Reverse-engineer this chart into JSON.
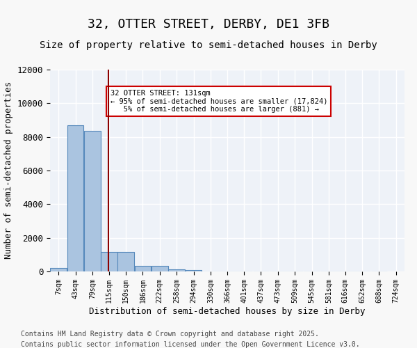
{
  "title": "32, OTTER STREET, DERBY, DE1 3FB",
  "subtitle": "Size of property relative to semi-detached houses in Derby",
  "xlabel": "Distribution of semi-detached houses by size in Derby",
  "ylabel": "Number of semi-detached properties",
  "footer_line1": "Contains HM Land Registry data © Crown copyright and database right 2025.",
  "footer_line2": "Contains public sector information licensed under the Open Government Licence v3.0.",
  "bins": [
    "7sqm",
    "43sqm",
    "79sqm",
    "115sqm",
    "150sqm",
    "186sqm",
    "222sqm",
    "258sqm",
    "294sqm",
    "330sqm",
    "366sqm",
    "401sqm",
    "437sqm",
    "473sqm",
    "509sqm",
    "545sqm",
    "581sqm",
    "616sqm",
    "652sqm",
    "688sqm",
    "724sqm"
  ],
  "bin_edges": [
    7,
    43,
    79,
    115,
    150,
    186,
    222,
    258,
    294,
    330,
    366,
    401,
    437,
    473,
    509,
    545,
    581,
    616,
    652,
    688,
    724
  ],
  "values": [
    200,
    8700,
    8350,
    1150,
    1150,
    320,
    320,
    120,
    100,
    0,
    0,
    0,
    0,
    0,
    0,
    0,
    0,
    0,
    0,
    0
  ],
  "bar_color": "#aac4e0",
  "bar_edge_color": "#5588bb",
  "vline_x": 131,
  "vline_color": "#8b0000",
  "annotation_text": "32 OTTER STREET: 131sqm\n← 95% of semi-detached houses are smaller (17,824)\n   5% of semi-detached houses are larger (881) →",
  "annotation_box_color": "#ffffff",
  "annotation_box_edge": "#cc0000",
  "ylim": [
    0,
    12000
  ],
  "yticks": [
    0,
    2000,
    4000,
    6000,
    8000,
    10000,
    12000
  ],
  "background_color": "#eef2f8",
  "grid_color": "#ffffff",
  "title_fontsize": 13,
  "subtitle_fontsize": 10,
  "xlabel_fontsize": 9,
  "ylabel_fontsize": 9,
  "footer_fontsize": 7
}
